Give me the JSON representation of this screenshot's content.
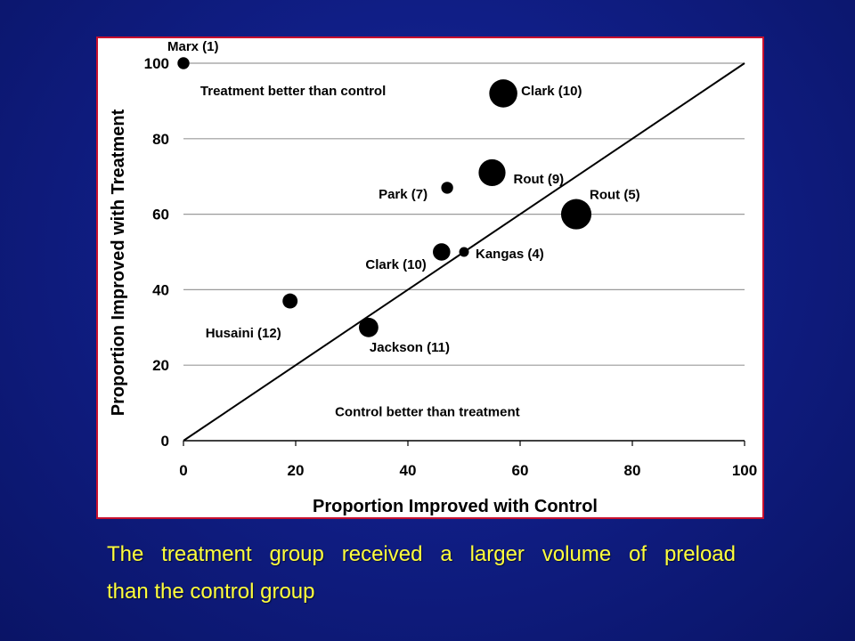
{
  "slide": {
    "background": "#101e86",
    "caption_color": "#ffff3c",
    "frame_border_color": "#c8102e",
    "caption": {
      "line1": "The treatment group received a larger volume of preload",
      "line2": "than the control group"
    }
  },
  "chart_data": {
    "type": "scatter",
    "title": "",
    "xlabel": "Proportion Improved with Control",
    "ylabel": "Proportion Improved with Treatment",
    "xlim": [
      0,
      100
    ],
    "ylim": [
      0,
      100
    ],
    "xticks": [
      0,
      20,
      40,
      60,
      80,
      100
    ],
    "yticks": [
      0,
      20,
      40,
      60,
      80,
      100
    ],
    "grid": "horizontal",
    "reference_line": {
      "from": [
        0,
        0
      ],
      "to": [
        100,
        100
      ]
    },
    "region_labels": {
      "upper": "Treatment better than control",
      "lower": "Control better than treatment"
    },
    "points": [
      {
        "label": "Marx  (1)",
        "x": 0,
        "y": 100,
        "weight": 1
      },
      {
        "label": "Clark (10)",
        "x": 57,
        "y": 92,
        "weight": 10
      },
      {
        "label": "Rout (9)",
        "x": 55,
        "y": 71,
        "weight": 9
      },
      {
        "label": "Park (7)",
        "x": 47,
        "y": 67,
        "weight": 1
      },
      {
        "label": "Rout (5)",
        "x": 70,
        "y": 60,
        "weight": 12
      },
      {
        "label": "Clark (10)",
        "x": 46,
        "y": 50,
        "weight": 3
      },
      {
        "label": "Kangas (4)",
        "x": 50,
        "y": 50,
        "weight": 0.5
      },
      {
        "label": "Husaini (12)",
        "x": 19,
        "y": 37,
        "weight": 2
      },
      {
        "label": "Jackson (11)",
        "x": 33,
        "y": 30,
        "weight": 4
      }
    ]
  }
}
